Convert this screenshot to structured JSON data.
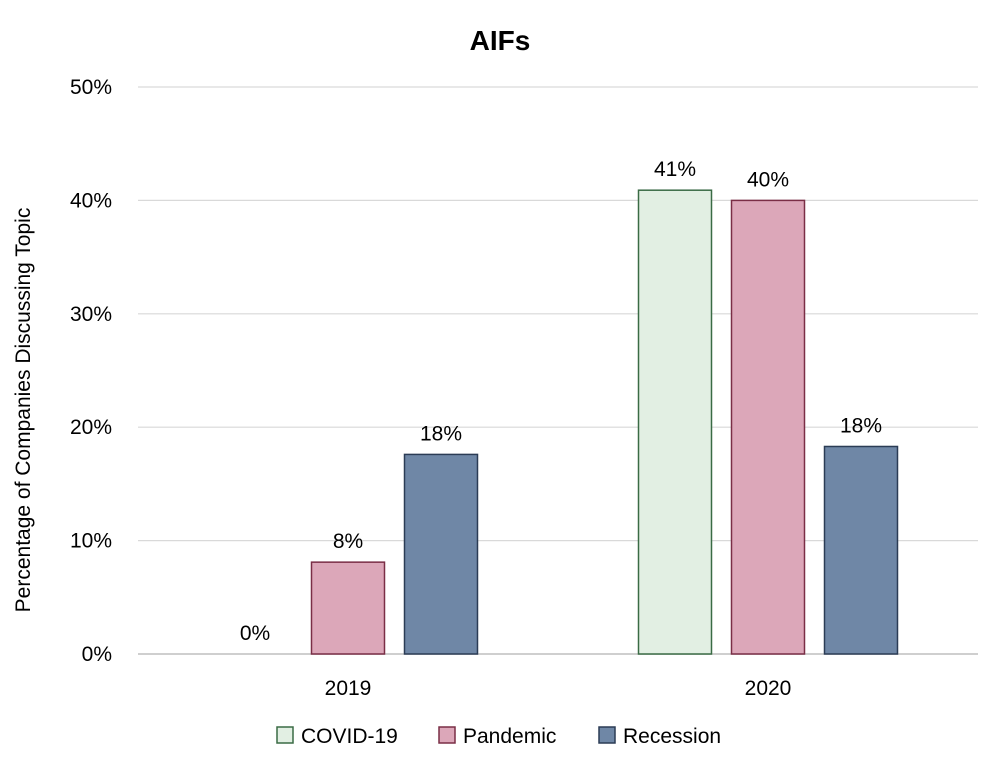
{
  "chart_data": {
    "type": "bar",
    "title": "AIFs",
    "ylabel": "Percentage of Companies Discussing Topic",
    "xlabel": "",
    "categories": [
      "2019",
      "2020"
    ],
    "ylim": [
      0,
      50
    ],
    "yticks": [
      0,
      10,
      20,
      30,
      40,
      50
    ],
    "ytick_labels": [
      "0%",
      "10%",
      "20%",
      "30%",
      "40%",
      "50%"
    ],
    "grid": true,
    "legend_position": "bottom",
    "series": [
      {
        "name": "COVID-19",
        "values": [
          0,
          40.9
        ],
        "labels": [
          "0%",
          "41%"
        ],
        "fill": "#e2efe3",
        "stroke": "#3a6b45"
      },
      {
        "name": "Pandemic",
        "values": [
          8.1,
          40.0
        ],
        "labels": [
          "8%",
          "40%"
        ],
        "fill": "#dca7b9",
        "stroke": "#7a2e46"
      },
      {
        "name": "Recession",
        "values": [
          17.6,
          18.3
        ],
        "labels": [
          "18%",
          "18%"
        ],
        "fill": "#6f87a6",
        "stroke": "#2b3c55"
      }
    ]
  }
}
